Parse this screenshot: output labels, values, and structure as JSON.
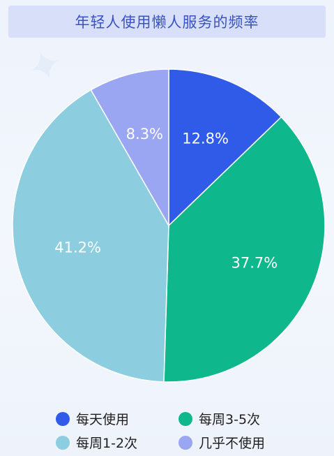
{
  "title": "年轻人使用懒人服务的频率",
  "chart_data": {
    "type": "pie",
    "title": "年轻人使用懒人服务的频率",
    "start_angle_deg": 0,
    "direction": "clockwise",
    "slices": [
      {
        "name": "每天使用",
        "value": 12.8,
        "label": "12.8%",
        "color": "#2f5be8"
      },
      {
        "name": "每周3-5次",
        "value": 37.7,
        "label": "37.7%",
        "color": "#0fb88c"
      },
      {
        "name": "每周1-2次",
        "value": 41.2,
        "label": "41.2%",
        "color": "#8ccee0"
      },
      {
        "name": "几乎不使用",
        "value": 8.3,
        "label": "8.3%",
        "color": "#9aa6f2"
      }
    ],
    "legend_position": "bottom",
    "label_color": "#ffffff"
  }
}
